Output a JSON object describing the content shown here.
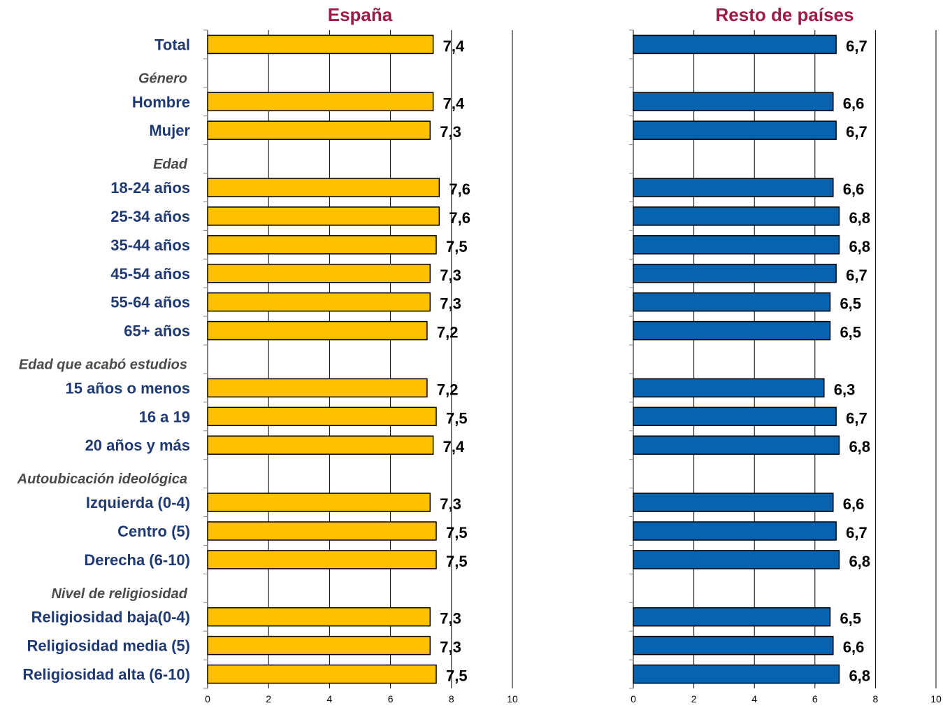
{
  "chart_data": [
    {
      "type": "bar",
      "orientation": "horizontal",
      "title": "España",
      "xlim": [
        0,
        10
      ],
      "xticks": [
        "0",
        "2",
        "4",
        "6",
        "8",
        "10"
      ],
      "bar_color": "#FFC000",
      "rows": [
        {
          "label": "Total",
          "kind": "item",
          "value": 7.4,
          "value_label": "7,4"
        },
        {
          "label": "Género",
          "kind": "heading",
          "value": null,
          "value_label": ""
        },
        {
          "label": "Hombre",
          "kind": "item",
          "value": 7.4,
          "value_label": "7,4"
        },
        {
          "label": "Mujer",
          "kind": "item",
          "value": 7.3,
          "value_label": "7,3"
        },
        {
          "label": "Edad",
          "kind": "heading",
          "value": null,
          "value_label": ""
        },
        {
          "label": "18-24 años",
          "kind": "item",
          "value": 7.6,
          "value_label": "7,6"
        },
        {
          "label": "25-34 años",
          "kind": "item",
          "value": 7.6,
          "value_label": "7,6"
        },
        {
          "label": "35-44 años",
          "kind": "item",
          "value": 7.5,
          "value_label": "7,5"
        },
        {
          "label": "45-54 años",
          "kind": "item",
          "value": 7.3,
          "value_label": "7,3"
        },
        {
          "label": "55-64 años",
          "kind": "item",
          "value": 7.3,
          "value_label": "7,3"
        },
        {
          "label": "65+ años",
          "kind": "item",
          "value": 7.2,
          "value_label": "7,2"
        },
        {
          "label": "Edad que acabó estudios",
          "kind": "heading",
          "value": null,
          "value_label": ""
        },
        {
          "label": "15 años o menos",
          "kind": "item",
          "value": 7.2,
          "value_label": "7,2"
        },
        {
          "label": "16 a 19",
          "kind": "item",
          "value": 7.5,
          "value_label": "7,5"
        },
        {
          "label": "20 años y más",
          "kind": "item",
          "value": 7.4,
          "value_label": "7,4"
        },
        {
          "label": "Autoubicación ideológica",
          "kind": "heading",
          "value": null,
          "value_label": ""
        },
        {
          "label": "Izquierda (0-4)",
          "kind": "item",
          "value": 7.3,
          "value_label": "7,3"
        },
        {
          "label": "Centro (5)",
          "kind": "item",
          "value": 7.5,
          "value_label": "7,5"
        },
        {
          "label": "Derecha (6-10)",
          "kind": "item",
          "value": 7.5,
          "value_label": "7,5"
        },
        {
          "label": "Nivel de religiosidad",
          "kind": "heading",
          "value": null,
          "value_label": ""
        },
        {
          "label": "Religiosidad baja(0-4)",
          "kind": "item",
          "value": 7.3,
          "value_label": "7,3"
        },
        {
          "label": "Religiosidad media (5)",
          "kind": "item",
          "value": 7.3,
          "value_label": "7,3"
        },
        {
          "label": "Religiosidad alta (6-10)",
          "kind": "item",
          "value": 7.5,
          "value_label": "7,5"
        }
      ]
    },
    {
      "type": "bar",
      "orientation": "horizontal",
      "title": "Resto de países",
      "xlim": [
        0,
        10
      ],
      "xticks": [
        "0",
        "2",
        "4",
        "6",
        "8",
        "10"
      ],
      "bar_color": "#0563B0",
      "values": [
        6.7,
        null,
        6.6,
        6.7,
        null,
        6.6,
        6.8,
        6.8,
        6.7,
        6.5,
        6.5,
        null,
        6.3,
        6.7,
        6.8,
        null,
        6.6,
        6.7,
        6.8,
        null,
        6.5,
        6.6,
        6.8
      ],
      "value_labels": [
        "6,7",
        "",
        "6,6",
        "6,7",
        "",
        "6,6",
        "6,8",
        "6,8",
        "6,7",
        "6,5",
        "6,5",
        "",
        "6,3",
        "6,7",
        "6,8",
        "",
        "6,6",
        "6,7",
        "6,8",
        "",
        "6,5",
        "6,6",
        "6,8"
      ]
    }
  ],
  "colors": {
    "title": "#9E1A47",
    "category_label": "#1F3A73",
    "heading_label": "#4A4A4A",
    "value_label": "#000000",
    "grid": "#000000",
    "tick_label": "#000000"
  }
}
